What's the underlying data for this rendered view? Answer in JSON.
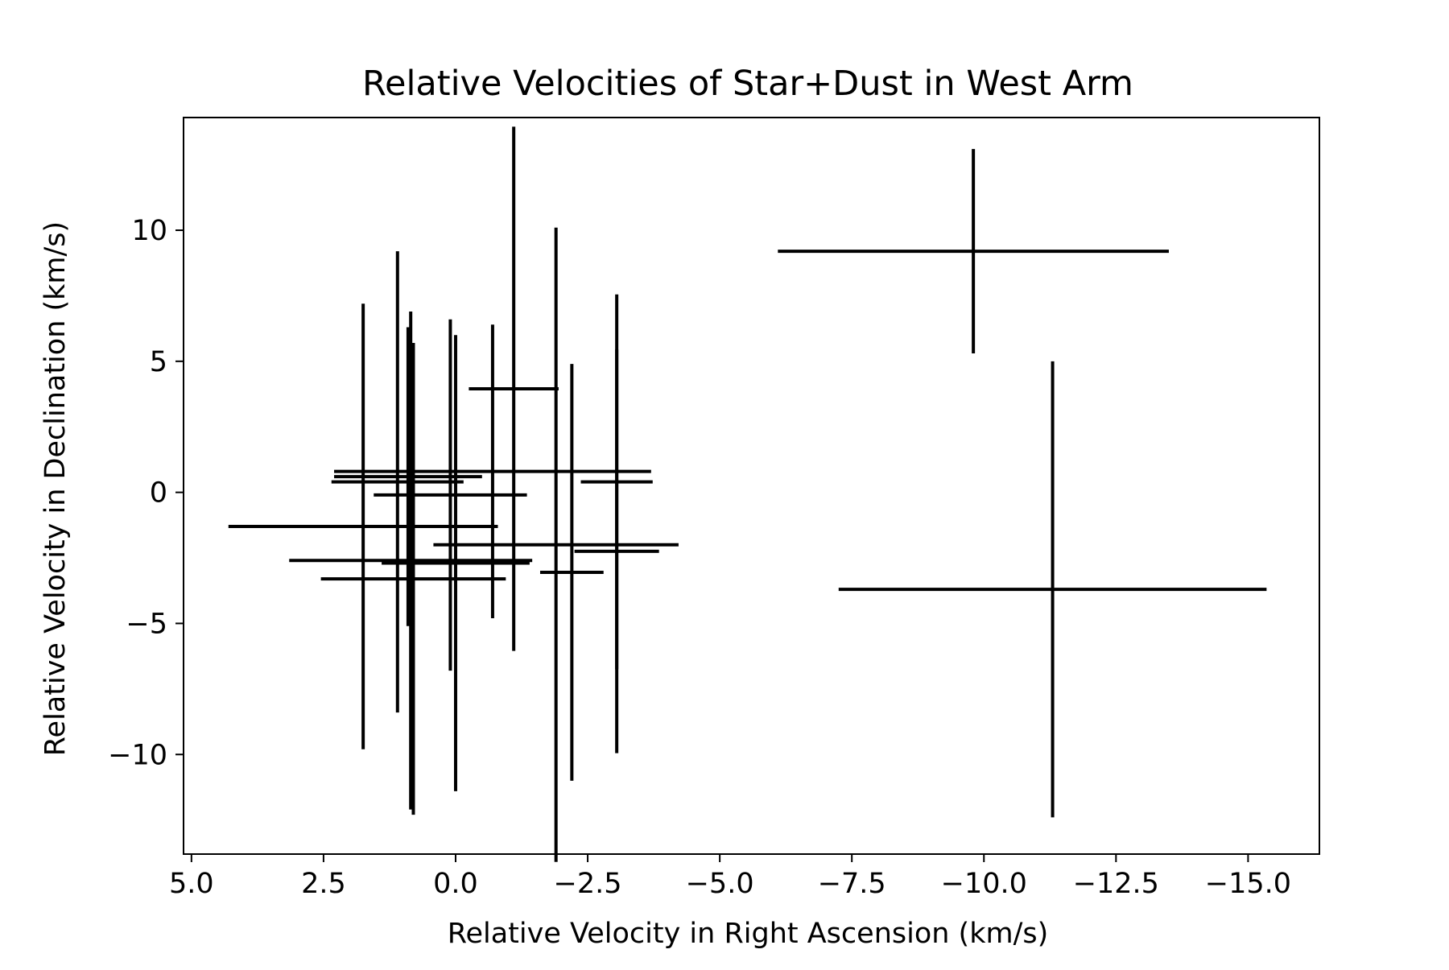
{
  "chart_data": {
    "type": "scatter",
    "title": "Relative Velocities of Star+Dust in West Arm",
    "xlabel": "Relative Velocity in Right Ascension (km/s)",
    "ylabel": "Relative Velocity in Declination (km/s)",
    "xlim": [
      5.15,
      -16.35
    ],
    "ylim": [
      -13.8,
      14.3
    ],
    "x_inverted": true,
    "grid": false,
    "legend": "none",
    "color": "#000000",
    "x_ticks": [
      {
        "value": 5.0,
        "label": "5.0"
      },
      {
        "value": 2.5,
        "label": "2.5"
      },
      {
        "value": 0.0,
        "label": "0.0"
      },
      {
        "value": -2.5,
        "label": "−2.5"
      },
      {
        "value": -5.0,
        "label": "−5.0"
      },
      {
        "value": -7.5,
        "label": "−7.5"
      },
      {
        "value": -10.0,
        "label": "−10.0"
      },
      {
        "value": -12.5,
        "label": "−12.5"
      },
      {
        "value": -15.0,
        "label": "−15.0"
      }
    ],
    "y_ticks": [
      {
        "value": 10,
        "label": "10"
      },
      {
        "value": 5,
        "label": "5"
      },
      {
        "value": 0,
        "label": "0"
      },
      {
        "value": -5,
        "label": "−5"
      },
      {
        "value": -10,
        "label": "−10"
      }
    ],
    "points": [
      {
        "x": 1.75,
        "y": -1.3,
        "xerr": 2.55,
        "yerr": 8.5
      },
      {
        "x": 1.1,
        "y": 0.4,
        "xerr": 1.25,
        "yerr": 8.8
      },
      {
        "x": 0.9,
        "y": 0.6,
        "xerr": 1.4,
        "yerr": 5.7
      },
      {
        "x": 0.85,
        "y": -2.6,
        "xerr": 2.3,
        "yerr": 9.5
      },
      {
        "x": 0.8,
        "y": -3.3,
        "xerr": 1.75,
        "yerr": 9.0
      },
      {
        "x": 0.1,
        "y": -0.1,
        "xerr": 1.45,
        "yerr": 6.7
      },
      {
        "x": 0.0,
        "y": -2.7,
        "xerr": 1.4,
        "yerr": 8.7
      },
      {
        "x": -0.7,
        "y": 0.8,
        "xerr": 3.0,
        "yerr": 5.6
      },
      {
        "x": -1.1,
        "y": 3.95,
        "xerr": 0.85,
        "yerr": 10.0
      },
      {
        "x": -1.9,
        "y": -2.0,
        "xerr": 2.32,
        "yerr": 12.1
      },
      {
        "x": -2.2,
        "y": -3.05,
        "xerr": 0.6,
        "yerr": 7.95
      },
      {
        "x": -3.05,
        "y": 0.4,
        "xerr": 0.68,
        "yerr": 7.15
      },
      {
        "x": -3.05,
        "y": -2.25,
        "xerr": 0.8,
        "yerr": 7.7
      },
      {
        "x": -9.8,
        "y": 9.2,
        "xerr": 3.7,
        "yerr": 3.9
      },
      {
        "x": -11.3,
        "y": -3.7,
        "xerr": 4.05,
        "yerr": 8.7
      }
    ]
  }
}
